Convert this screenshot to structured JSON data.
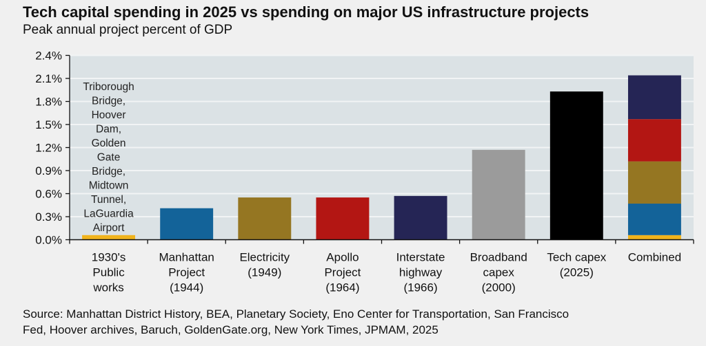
{
  "chart_data": {
    "type": "bar",
    "title": "Tech capital spending in 2025 vs spending on major US infrastructure projects",
    "subtitle": "Peak annual project percent of GDP",
    "xlabel": "",
    "ylabel": "",
    "ylim": [
      0,
      2.4
    ],
    "yticks": [
      "0.0%",
      "0.3%",
      "0.6%",
      "0.9%",
      "1.2%",
      "1.5%",
      "1.8%",
      "2.1%",
      "2.4%"
    ],
    "ytick_values": [
      0,
      0.3,
      0.6,
      0.9,
      1.2,
      1.5,
      1.8,
      2.1,
      2.4
    ],
    "grid": true,
    "categories": [
      [
        "1930's",
        "Public",
        "works"
      ],
      [
        "Manhattan",
        "Project",
        "(1944)"
      ],
      [
        "Electricity",
        "(1949)"
      ],
      [
        "Apollo",
        "Project",
        "(1964)"
      ],
      [
        "Interstate",
        "highway",
        "(1966)"
      ],
      [
        "Broadband",
        "capex",
        "(2000)"
      ],
      [
        "Tech capex",
        "(2025)"
      ],
      [
        "Combined"
      ]
    ],
    "values": [
      0.06,
      0.41,
      0.55,
      0.55,
      0.57,
      1.17,
      1.93,
      2.14
    ],
    "colors": [
      "#f0b31c",
      "#136399",
      "#957622",
      "#b31613",
      "#252555",
      "#9b9b9b",
      "#000000",
      null
    ],
    "stacked_combined": {
      "category": "Combined",
      "segments": [
        {
          "name": "1930's Public works",
          "value": 0.06,
          "color": "#f0b31c"
        },
        {
          "name": "Manhattan Project",
          "value": 0.41,
          "color": "#136399"
        },
        {
          "name": "Electricity",
          "value": 0.55,
          "color": "#957622"
        },
        {
          "name": "Apollo Project",
          "value": 0.55,
          "color": "#b31613"
        },
        {
          "name": "Interstate highway",
          "value": 0.57,
          "color": "#252555"
        }
      ]
    },
    "annotation": [
      "Triborough",
      "Bridge,",
      "Hoover",
      "Dam,",
      "Golden",
      "Gate",
      "Bridge,",
      "Midtown",
      "Tunnel,",
      "LaGuardia",
      "Airport"
    ],
    "plot_background": "#dbe2e5",
    "source": "Source: Manhattan District History, BEA, Planetary Society, Eno Center for Transportation, San Francisco Fed, Hoover archives, Baruch, GoldenGate.org, New York Times, JPMAM, 2025"
  },
  "source_lines": [
    "Source: Manhattan District History, BEA, Planetary Society, Eno Center for Transportation, San Francisco",
    "Fed, Hoover archives, Baruch, GoldenGate.org, New York Times, JPMAM, 2025"
  ]
}
